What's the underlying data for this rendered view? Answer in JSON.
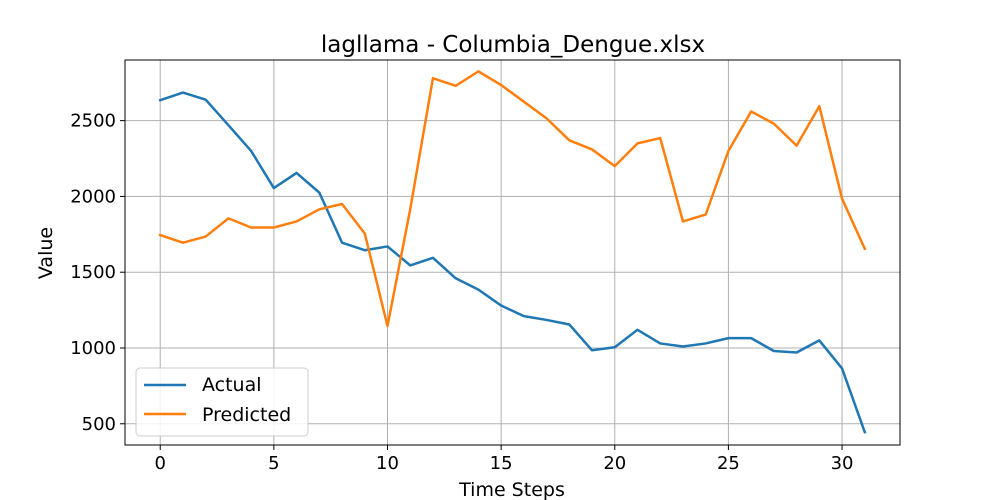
{
  "chart_data": {
    "type": "line",
    "title": "lagllama - Columbia_Dengue.xlsx",
    "xlabel": "Time Steps",
    "ylabel": "Value",
    "xlim": [
      -1.55,
      32.55
    ],
    "ylim": [
      360,
      2900
    ],
    "xticks": [
      0,
      5,
      10,
      15,
      20,
      25,
      30
    ],
    "yticks": [
      500,
      1000,
      1500,
      2000,
      2500
    ],
    "grid": true,
    "legend": "lower-left",
    "x": [
      0,
      1,
      2,
      3,
      4,
      5,
      6,
      7,
      8,
      9,
      10,
      11,
      12,
      13,
      14,
      15,
      16,
      17,
      18,
      19,
      20,
      21,
      22,
      23,
      24,
      25,
      26,
      27,
      28,
      29,
      30,
      31
    ],
    "series": [
      {
        "name": "Actual",
        "color": "#1f77b4",
        "values": [
          2635,
          2685,
          2638,
          2470,
          2300,
          2055,
          2155,
          2025,
          1695,
          1645,
          1670,
          1545,
          1595,
          1460,
          1385,
          1280,
          1210,
          1185,
          1155,
          985,
          1005,
          1120,
          1030,
          1010,
          1030,
          1065,
          1065,
          980,
          970,
          1050,
          865,
          445
        ]
      },
      {
        "name": "Predicted",
        "color": "#ff7f0e",
        "values": [
          1745,
          1695,
          1735,
          1855,
          1795,
          1795,
          1835,
          1915,
          1950,
          1755,
          1145,
          1915,
          2780,
          2730,
          2825,
          2735,
          2625,
          2515,
          2370,
          2310,
          2200,
          2350,
          2385,
          1835,
          1880,
          2300,
          2560,
          2480,
          2335,
          2595,
          1985,
          1655
        ]
      }
    ]
  }
}
